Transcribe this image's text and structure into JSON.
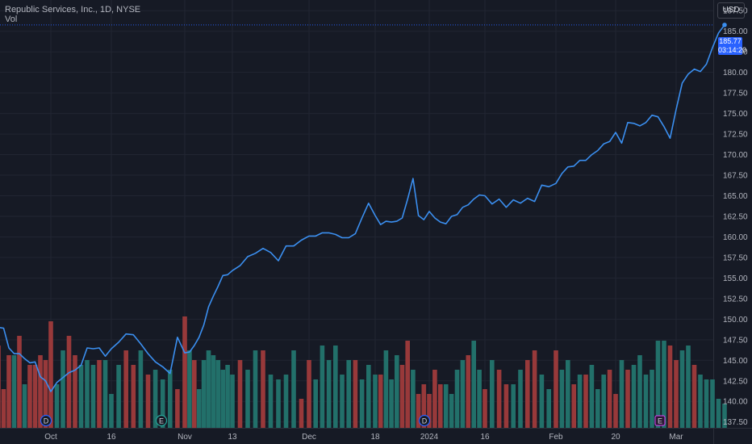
{
  "header": {
    "title": "Republic Services, Inc., 1D, NYSE",
    "vol_label": "Vol",
    "currency": "USD"
  },
  "price_tag": {
    "price": "185.77",
    "countdown": "03:14:20"
  },
  "markers": [
    "D",
    "E",
    "D",
    "E"
  ],
  "colors": {
    "up": "#26a69a",
    "down": "#ef5350",
    "line": "#3b8ff0",
    "bg": "#161a25"
  },
  "chart_data": {
    "type": "line",
    "title": "Republic Services, Inc., 1D, NYSE",
    "y_ticks": [
      "187.50",
      "185.00",
      "182.50",
      "180.00",
      "177.50",
      "175.00",
      "172.50",
      "170.00",
      "167.50",
      "165.00",
      "162.50",
      "160.00",
      "157.50",
      "155.00",
      "152.50",
      "150.00",
      "147.50",
      "145.00",
      "142.50",
      "140.00",
      "137.50"
    ],
    "x_ticks": [
      "Oct",
      "16",
      "Nov",
      "13",
      "Dec",
      "18",
      "2024",
      "16",
      "Feb",
      "20",
      "Mar"
    ],
    "ylim": [
      136.0,
      188.8
    ],
    "grid": true,
    "series": [
      {
        "values": [
          149.0,
          148.9,
          146.5,
          145.8,
          145.8,
          145.2,
          144.7,
          144.8,
          143.0,
          142.5,
          141.2,
          142.3,
          142.9,
          143.5,
          143.8,
          144.4,
          146.5,
          146.4,
          146.5,
          145.5,
          146.4,
          147.2,
          148.2,
          148.1,
          147.0,
          145.8,
          144.8,
          144.2,
          143.4,
          147.8,
          145.9,
          146.0,
          146.8,
          147.8,
          149.3,
          151.5,
          152.8,
          154.0,
          155.3,
          155.4,
          155.9,
          156.5,
          157.6,
          158.0,
          158.6,
          158.1,
          157.1,
          158.9,
          158.9,
          159.6,
          160.1,
          160.1,
          160.5,
          160.5,
          160.3,
          159.9,
          159.9,
          160.4,
          162.3,
          164.1,
          162.6,
          161.5,
          161.9,
          161.8,
          161.9,
          162.3,
          164.6,
          167.1,
          162.6,
          162.1,
          163.1,
          162.3,
          161.8,
          161.6,
          162.5,
          162.7,
          163.6,
          163.9,
          164.6,
          165.1,
          165.0,
          164.0,
          164.6,
          163.6,
          164.5,
          164.1,
          164.7,
          164.3,
          166.3,
          166.1,
          166.5,
          167.7,
          168.5,
          168.6,
          169.3,
          169.3,
          170.0,
          170.5,
          171.3,
          171.6,
          172.7,
          171.4,
          173.9,
          173.8,
          173.5,
          173.9,
          174.8,
          174.6,
          173.4,
          172.0,
          175.5,
          178.7,
          179.8,
          180.4,
          180.1,
          181.0,
          183.0,
          184.8,
          185.77
        ]
      }
    ],
    "volume": {
      "direction": [
        "d",
        "d",
        "d",
        "u",
        "d",
        "u",
        "d",
        "d",
        "d",
        "d",
        "d",
        "u",
        "u",
        "d",
        "d",
        "u",
        "u",
        "u",
        "d",
        "u",
        "u",
        "u",
        "d",
        "d",
        "u",
        "d",
        "u",
        "u",
        "u",
        "d",
        "d",
        "u",
        "d",
        "u",
        "u",
        "u",
        "u",
        "u",
        "u",
        "u",
        "u",
        "d",
        "u",
        "u",
        "d",
        "u",
        "u",
        "u",
        "u",
        "d",
        "d",
        "u",
        "u",
        "u",
        "u",
        "u",
        "u",
        "d",
        "u",
        "u",
        "u",
        "d",
        "u",
        "u",
        "u",
        "d",
        "d",
        "u",
        "d",
        "d",
        "d",
        "d",
        "d",
        "u",
        "u",
        "u",
        "u",
        "d",
        "u",
        "u",
        "d",
        "u",
        "d",
        "d",
        "u",
        "u",
        "d",
        "d",
        "u",
        "u",
        "d",
        "u",
        "u",
        "d",
        "u",
        "d",
        "u",
        "u",
        "u",
        "d",
        "d",
        "u",
        "d",
        "u",
        "u",
        "u",
        "u",
        "u",
        "u",
        "d",
        "d",
        "u",
        "u",
        "d",
        "u",
        "u",
        "u",
        "u",
        "u"
      ],
      "values": [
        1.7,
        0.8,
        1.5,
        1.5,
        1.9,
        0.9,
        1.3,
        1.3,
        1.5,
        1.4,
        2.2,
        0.9,
        1.6,
        1.9,
        1.5,
        1.3,
        1.4,
        1.3,
        1.4,
        1.4,
        0.7,
        1.3,
        1.6,
        1.3,
        1.6,
        1.1,
        1.2,
        1.0,
        1.2,
        0.8,
        2.3,
        1.6,
        1.4,
        0.8,
        1.4,
        1.6,
        1.5,
        1.4,
        1.2,
        1.3,
        1.1,
        1.4,
        1.2,
        1.6,
        1.6,
        1.1,
        1.0,
        1.1,
        1.6,
        0.6,
        1.4,
        1.0,
        1.7,
        1.4,
        1.7,
        1.1,
        1.4,
        1.4,
        1.0,
        1.3,
        1.1,
        1.1,
        1.6,
        1.0,
        1.5,
        1.3,
        1.8,
        1.2,
        0.7,
        0.9,
        0.7,
        1.2,
        0.9,
        0.9,
        0.7,
        1.2,
        1.4,
        1.5,
        1.8,
        1.2,
        0.8,
        1.4,
        1.2,
        0.9,
        0.9,
        1.2,
        1.4,
        1.6,
        1.1,
        0.8,
        1.6,
        1.2,
        1.4,
        0.9,
        1.1,
        1.1,
        1.3,
        0.8,
        1.1,
        1.2,
        0.7,
        1.4,
        1.2,
        1.3,
        1.5,
        1.1,
        1.2,
        1.8,
        1.8,
        1.7,
        1.4,
        1.6,
        1.7,
        1.3,
        1.1,
        1.0,
        1.0,
        0.6,
        0.5
      ]
    }
  }
}
